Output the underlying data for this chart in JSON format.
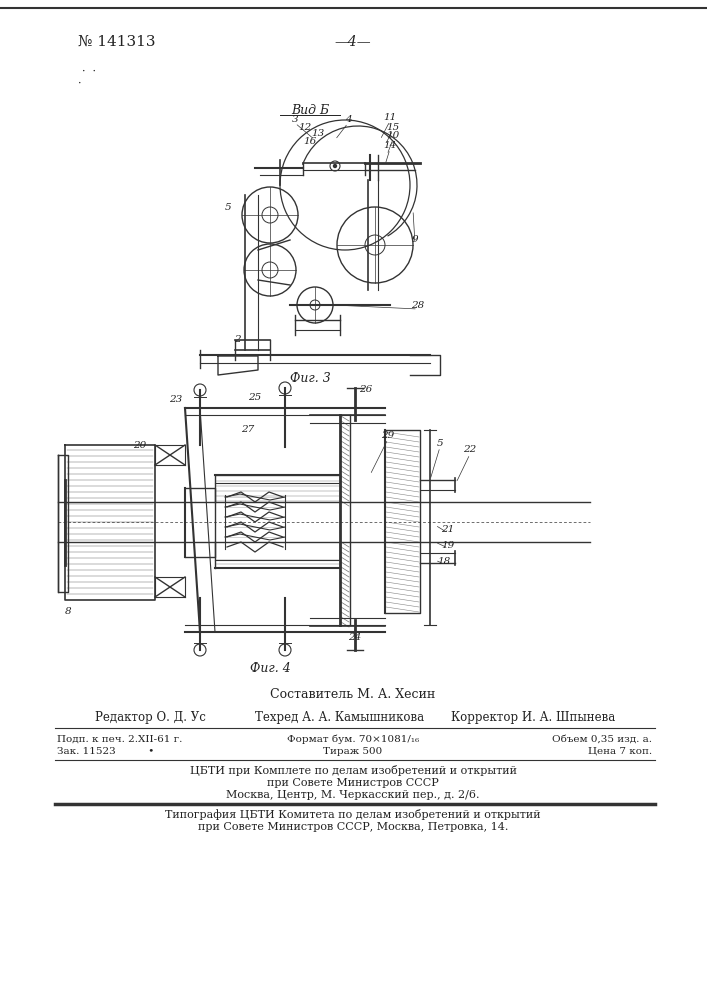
{
  "patent_number": "№ 141313",
  "page_number": "—4—",
  "fig3_label": "Фиг. 3",
  "fig4_label": "Фиг. 4",
  "vid_b": "Вид Б",
  "composer_line": "Составитель М. А. Хесин",
  "editor_label": "Редактор О. Д. Ус",
  "techred_label": "Техред А. А. Камышникова",
  "corrector_label": "Корректор И. А. Шпынева",
  "info_line1_col1": "Подп. к печ. 2.XII-61 г.",
  "info_line1_col2": "Формат бум. 70×1081/₁₆",
  "info_line1_col3": "Объем 0,35 изд. а.",
  "info_line2_col1": "Зак. 11523          •",
  "info_line2_col2": "Тираж 500",
  "info_line2_col3": "Цена 7 коп.",
  "cbti_line1": "ЦБТИ при Комплете по делам изобретений и открытий",
  "cbti_line2": "при Совете Министров СССР",
  "cbti_line3": "Москва, Центр, М. Черкасский пер., д. 2/6.",
  "typo_line1": "Типография ЦБТИ Комитета по делам изобретений и открытий",
  "typo_line2": "при Совете Министров СССР, Москва, Петровка, 14.",
  "bg_color": "#ffffff",
  "text_color": "#222222",
  "line_color": "#333333"
}
